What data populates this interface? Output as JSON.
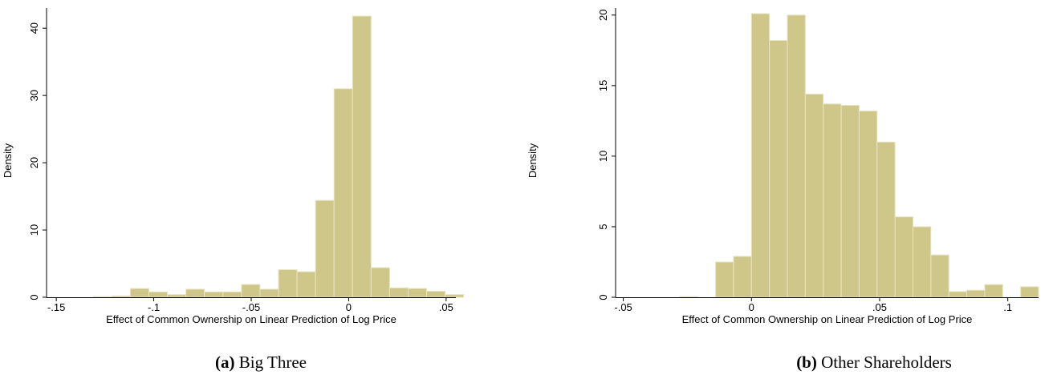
{
  "chart_data": [
    {
      "type": "bar",
      "panel_label": "(a)",
      "panel_title": "Big Three",
      "xlabel": "Effect of Common Ownership on Linear Prediction of Log Price",
      "ylabel": "Density",
      "xlim": [
        -0.155,
        0.055
      ],
      "ylim": [
        0,
        43
      ],
      "xticks": [
        -0.15,
        -0.1,
        -0.05,
        0,
        0.05
      ],
      "xtick_labels": [
        "-.15",
        "-.1",
        "-.05",
        "0",
        ".05"
      ],
      "yticks": [
        0,
        10,
        20,
        30,
        40
      ],
      "ytick_labels": [
        "0",
        "10",
        "20",
        "30",
        "40"
      ],
      "grid": false,
      "bar_color": "#cfc78a",
      "bins": [
        {
          "x0": -0.131,
          "x1": -0.1215,
          "density": 0.1
        },
        {
          "x0": -0.1215,
          "x1": -0.112,
          "density": 0.2
        },
        {
          "x0": -0.112,
          "x1": -0.1025,
          "density": 1.3
        },
        {
          "x0": -0.1025,
          "x1": -0.093,
          "density": 0.8
        },
        {
          "x0": -0.093,
          "x1": -0.0835,
          "density": 0.4
        },
        {
          "x0": -0.0835,
          "x1": -0.074,
          "density": 1.2
        },
        {
          "x0": -0.074,
          "x1": -0.0645,
          "density": 0.8
        },
        {
          "x0": -0.0645,
          "x1": -0.055,
          "density": 0.8
        },
        {
          "x0": -0.055,
          "x1": -0.0455,
          "density": 1.9
        },
        {
          "x0": -0.0455,
          "x1": -0.036,
          "density": 1.2
        },
        {
          "x0": -0.036,
          "x1": -0.0265,
          "density": 4.1
        },
        {
          "x0": -0.0265,
          "x1": -0.017,
          "density": 3.8
        },
        {
          "x0": -0.017,
          "x1": -0.0075,
          "density": 14.4
        },
        {
          "x0": -0.0075,
          "x1": 0.002,
          "density": 31.0
        },
        {
          "x0": 0.002,
          "x1": 0.0115,
          "density": 41.8
        },
        {
          "x0": 0.0115,
          "x1": 0.021,
          "density": 4.4
        },
        {
          "x0": 0.021,
          "x1": 0.0305,
          "density": 1.4
        },
        {
          "x0": 0.0305,
          "x1": 0.04,
          "density": 1.3
        },
        {
          "x0": 0.04,
          "x1": 0.0495,
          "density": 0.9
        },
        {
          "x0": 0.0495,
          "x1": 0.059,
          "density": 0.4
        }
      ]
    },
    {
      "type": "bar",
      "panel_label": "(b)",
      "panel_title": "Other Shareholders",
      "xlabel": "Effect of Common Ownership on Linear Prediction of Log Price",
      "ylabel": "Density",
      "xlim": [
        -0.053,
        0.112
      ],
      "ylim": [
        0,
        20.5
      ],
      "xticks": [
        -0.05,
        0,
        0.05,
        0.1
      ],
      "xtick_labels": [
        "-.05",
        "0",
        ".05",
        ".1"
      ],
      "yticks": [
        0,
        5,
        10,
        15,
        20
      ],
      "ytick_labels": [
        "0",
        "5",
        "10",
        "15",
        "20"
      ],
      "grid": false,
      "bar_color": "#cfc78a",
      "bins": [
        {
          "x0": -0.028,
          "x1": -0.021,
          "density": 0.05
        },
        {
          "x0": -0.014,
          "x1": -0.007,
          "density": 2.5
        },
        {
          "x0": -0.007,
          "x1": 0.0,
          "density": 2.9
        },
        {
          "x0": 0.0,
          "x1": 0.007,
          "density": 20.1
        },
        {
          "x0": 0.007,
          "x1": 0.014,
          "density": 18.2
        },
        {
          "x0": 0.014,
          "x1": 0.021,
          "density": 20.0
        },
        {
          "x0": 0.021,
          "x1": 0.028,
          "density": 14.4
        },
        {
          "x0": 0.028,
          "x1": 0.035,
          "density": 13.7
        },
        {
          "x0": 0.035,
          "x1": 0.042,
          "density": 13.6
        },
        {
          "x0": 0.042,
          "x1": 0.049,
          "density": 13.2
        },
        {
          "x0": 0.049,
          "x1": 0.056,
          "density": 11.0
        },
        {
          "x0": 0.056,
          "x1": 0.063,
          "density": 5.7
        },
        {
          "x0": 0.063,
          "x1": 0.07,
          "density": 5.0
        },
        {
          "x0": 0.07,
          "x1": 0.077,
          "density": 3.0
        },
        {
          "x0": 0.077,
          "x1": 0.084,
          "density": 0.4
        },
        {
          "x0": 0.084,
          "x1": 0.091,
          "density": 0.5
        },
        {
          "x0": 0.091,
          "x1": 0.098,
          "density": 0.9
        },
        {
          "x0": 0.105,
          "x1": 0.112,
          "density": 0.75
        }
      ]
    }
  ]
}
